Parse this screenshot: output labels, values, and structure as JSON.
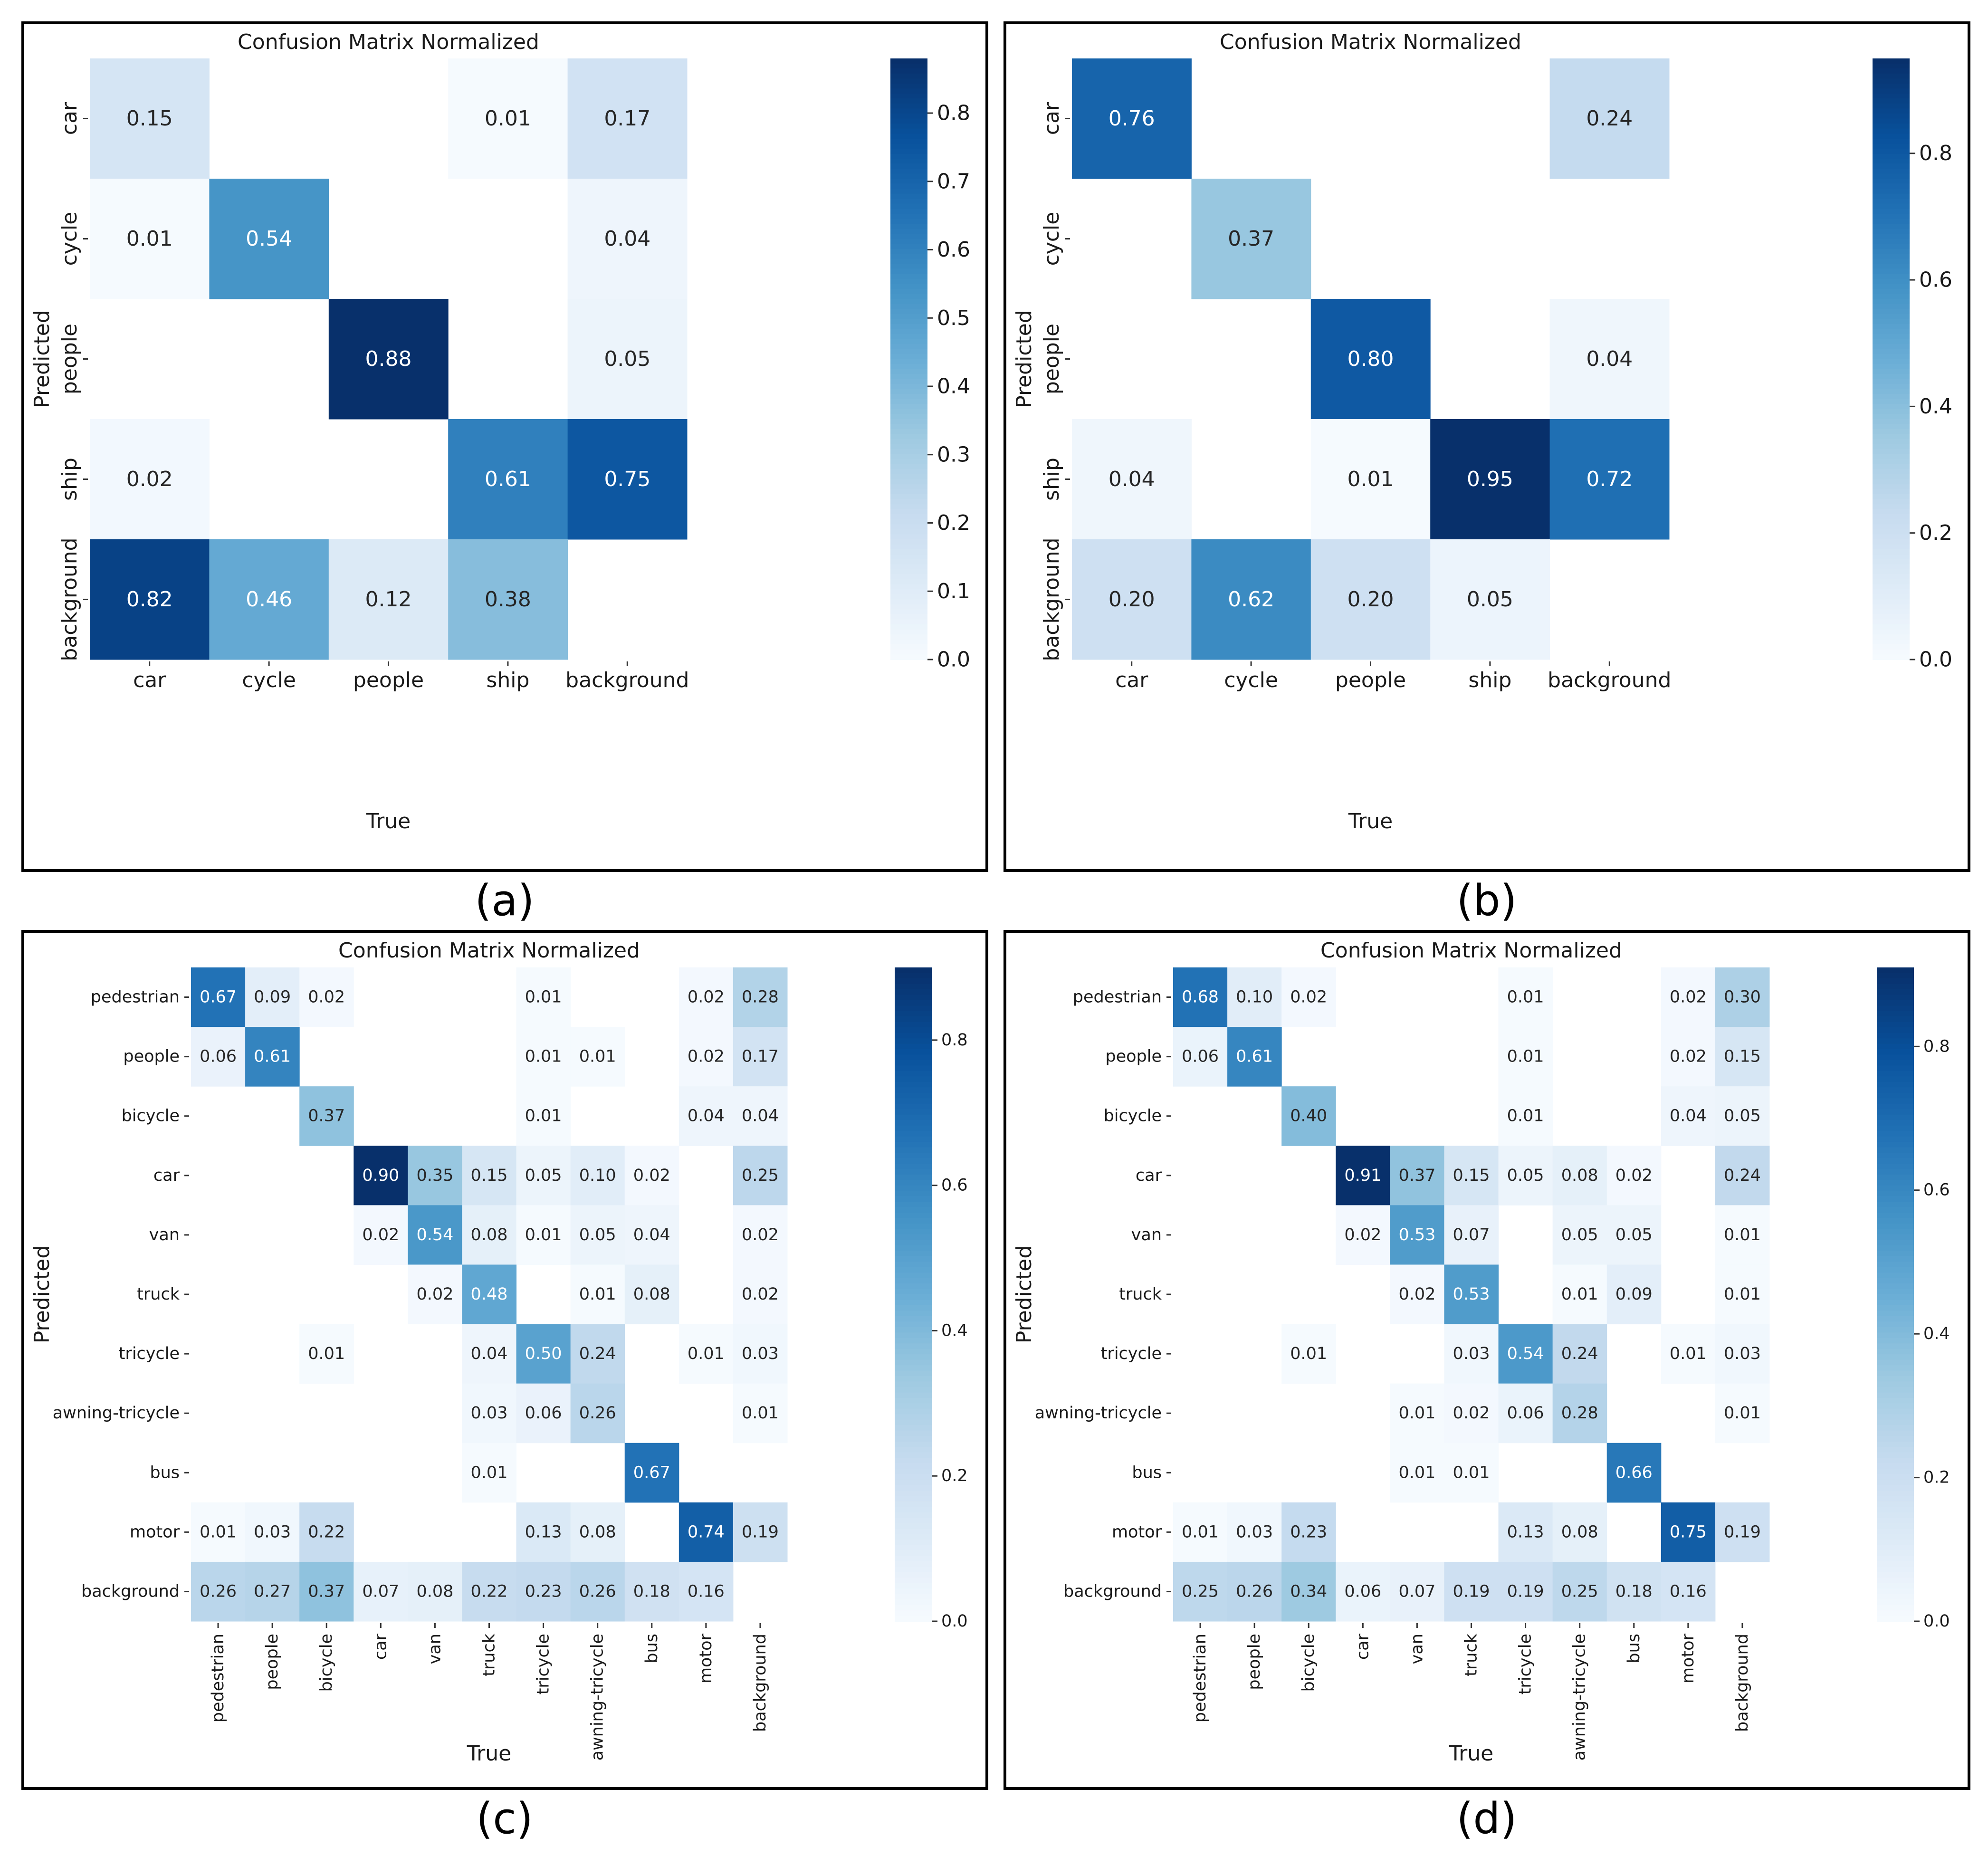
{
  "captions": [
    "(a)",
    "(b)",
    "(c)",
    "(d)"
  ],
  "colormap": [
    "#f7fbff",
    "#deebf7",
    "#c6dbef",
    "#9ecae1",
    "#6baed6",
    "#4292c6",
    "#2171b5",
    "#08519c",
    "#08306b"
  ],
  "chart_data": [
    {
      "type": "heatmap",
      "title": "Confusion Matrix Normalized",
      "xlabel": "True",
      "ylabel": "Predicted",
      "rows": [
        "car",
        "cycle",
        "people",
        "ship",
        "background"
      ],
      "cols": [
        "car",
        "cycle",
        "people",
        "ship",
        "background"
      ],
      "values": [
        [
          0.15,
          null,
          null,
          0.01,
          0.17
        ],
        [
          0.01,
          0.54,
          null,
          null,
          0.04
        ],
        [
          null,
          null,
          0.88,
          null,
          0.05
        ],
        [
          0.02,
          null,
          null,
          0.61,
          0.75
        ],
        [
          0.82,
          0.46,
          0.12,
          0.38,
          null
        ]
      ],
      "colorbar": {
        "vmin": 0,
        "vmax": 0.88,
        "ticks": [
          0.0,
          0.1,
          0.2,
          0.3,
          0.4,
          0.5,
          0.6,
          0.7,
          0.8
        ],
        "tick_labels": [
          "0.0",
          "0.1",
          "0.2",
          "0.3",
          "0.4",
          "0.5",
          "0.6",
          "0.7",
          "0.8"
        ]
      }
    },
    {
      "type": "heatmap",
      "title": "Confusion Matrix Normalized",
      "xlabel": "True",
      "ylabel": "Predicted",
      "rows": [
        "car",
        "cycle",
        "people",
        "ship",
        "background"
      ],
      "cols": [
        "car",
        "cycle",
        "people",
        "ship",
        "background"
      ],
      "values": [
        [
          0.76,
          null,
          null,
          null,
          0.24
        ],
        [
          null,
          0.37,
          null,
          null,
          null
        ],
        [
          null,
          null,
          0.8,
          null,
          0.04
        ],
        [
          0.04,
          null,
          0.01,
          0.95,
          0.72
        ],
        [
          0.2,
          0.62,
          0.2,
          0.05,
          null
        ]
      ],
      "colorbar": {
        "vmin": 0,
        "vmax": 0.95,
        "ticks": [
          0.0,
          0.2,
          0.4,
          0.6,
          0.8
        ],
        "tick_labels": [
          "0.0",
          "0.2",
          "0.4",
          "0.6",
          "0.8"
        ]
      }
    },
    {
      "type": "heatmap",
      "title": "Confusion Matrix Normalized",
      "xlabel": "True",
      "ylabel": "Predicted",
      "rows": [
        "pedestrian",
        "people",
        "bicycle",
        "car",
        "van",
        "truck",
        "tricycle",
        "awning-tricycle",
        "bus",
        "motor",
        "background"
      ],
      "cols": [
        "pedestrian",
        "people",
        "bicycle",
        "car",
        "van",
        "truck",
        "tricycle",
        "awning-tricycle",
        "bus",
        "motor",
        "background"
      ],
      "values": [
        [
          0.67,
          0.09,
          0.02,
          null,
          null,
          null,
          0.01,
          null,
          null,
          0.02,
          0.28
        ],
        [
          0.06,
          0.61,
          null,
          null,
          null,
          null,
          0.01,
          0.01,
          null,
          0.02,
          0.17
        ],
        [
          null,
          null,
          0.37,
          null,
          null,
          null,
          0.01,
          null,
          null,
          0.04,
          0.04
        ],
        [
          null,
          null,
          null,
          0.9,
          0.35,
          0.15,
          0.05,
          0.1,
          0.02,
          null,
          0.25
        ],
        [
          null,
          null,
          null,
          0.02,
          0.54,
          0.08,
          0.01,
          0.05,
          0.04,
          null,
          0.02
        ],
        [
          null,
          null,
          null,
          null,
          0.02,
          0.48,
          null,
          0.01,
          0.08,
          null,
          0.02
        ],
        [
          null,
          null,
          0.01,
          null,
          null,
          0.04,
          0.5,
          0.24,
          null,
          0.01,
          0.03
        ],
        [
          null,
          null,
          null,
          null,
          null,
          0.03,
          0.06,
          0.26,
          null,
          null,
          0.01
        ],
        [
          null,
          null,
          null,
          null,
          null,
          0.01,
          null,
          null,
          0.67,
          null,
          null
        ],
        [
          0.01,
          0.03,
          0.22,
          null,
          null,
          null,
          0.13,
          0.08,
          null,
          0.74,
          0.19
        ],
        [
          0.26,
          0.27,
          0.37,
          0.07,
          0.08,
          0.22,
          0.23,
          0.26,
          0.18,
          0.16,
          null
        ]
      ],
      "colorbar": {
        "vmin": 0,
        "vmax": 0.9,
        "ticks": [
          0.0,
          0.2,
          0.4,
          0.6,
          0.8
        ],
        "tick_labels": [
          "0.0",
          "0.2",
          "0.4",
          "0.6",
          "0.8"
        ]
      }
    },
    {
      "type": "heatmap",
      "title": "Confusion Matrix Normalized",
      "xlabel": "True",
      "ylabel": "Predicted",
      "rows": [
        "pedestrian",
        "people",
        "bicycle",
        "car",
        "van",
        "truck",
        "tricycle",
        "awning-tricycle",
        "bus",
        "motor",
        "background"
      ],
      "cols": [
        "pedestrian",
        "people",
        "bicycle",
        "car",
        "van",
        "truck",
        "tricycle",
        "awning-tricycle",
        "bus",
        "motor",
        "background"
      ],
      "values": [
        [
          0.68,
          0.1,
          0.02,
          null,
          null,
          null,
          0.01,
          null,
          null,
          0.02,
          0.3
        ],
        [
          0.06,
          0.61,
          null,
          null,
          null,
          null,
          0.01,
          null,
          null,
          0.02,
          0.15
        ],
        [
          null,
          null,
          0.4,
          null,
          null,
          null,
          0.01,
          null,
          null,
          0.04,
          0.05
        ],
        [
          null,
          null,
          null,
          0.91,
          0.37,
          0.15,
          0.05,
          0.08,
          0.02,
          null,
          0.24
        ],
        [
          null,
          null,
          null,
          0.02,
          0.53,
          0.07,
          null,
          0.05,
          0.05,
          null,
          0.01
        ],
        [
          null,
          null,
          null,
          null,
          0.02,
          0.53,
          null,
          0.01,
          0.09,
          null,
          0.01
        ],
        [
          null,
          null,
          0.01,
          null,
          null,
          0.03,
          0.54,
          0.24,
          null,
          0.01,
          0.03
        ],
        [
          null,
          null,
          null,
          null,
          0.01,
          0.02,
          0.06,
          0.28,
          null,
          null,
          0.01
        ],
        [
          null,
          null,
          null,
          null,
          0.01,
          0.01,
          null,
          null,
          0.66,
          null,
          null
        ],
        [
          0.01,
          0.03,
          0.23,
          null,
          null,
          null,
          0.13,
          0.08,
          null,
          0.75,
          0.19
        ],
        [
          0.25,
          0.26,
          0.34,
          0.06,
          0.07,
          0.19,
          0.19,
          0.25,
          0.18,
          0.16,
          null
        ]
      ],
      "colorbar": {
        "vmin": 0,
        "vmax": 0.91,
        "ticks": [
          0.0,
          0.2,
          0.4,
          0.6,
          0.8
        ],
        "tick_labels": [
          "0.0",
          "0.2",
          "0.4",
          "0.6",
          "0.8"
        ]
      }
    }
  ]
}
